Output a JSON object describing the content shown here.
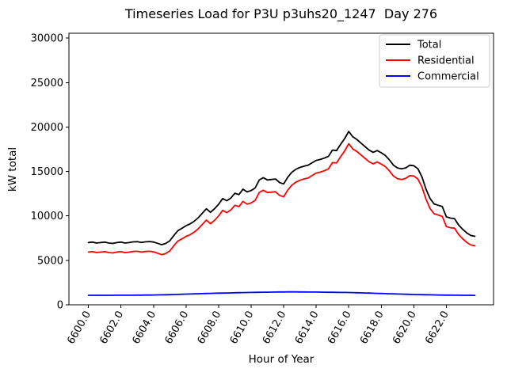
{
  "chart_data": {
    "type": "line",
    "title": "Timeseries Load for P3U p3uhs20_1247  Day 276",
    "xlabel": "Hour of Year",
    "ylabel": "kW total",
    "xlim": [
      6598.8,
      6624.9
    ],
    "ylim": [
      0,
      30550
    ],
    "xticks": [
      6600.0,
      6602.0,
      6604.0,
      6606.0,
      6608.0,
      6610.0,
      6612.0,
      6614.0,
      6616.0,
      6618.0,
      6620.0,
      6622.0
    ],
    "xtick_rotation_deg": 60,
    "yticks": [
      0,
      5000,
      10000,
      15000,
      20000,
      25000,
      30000
    ],
    "grid": false,
    "legend": {
      "position": "upper right",
      "entries": [
        "Total",
        "Residential",
        "Commercial"
      ]
    },
    "axis_color": "#000000",
    "legend_border_color": "#cccccc",
    "x": [
      6600.0,
      6600.25,
      6600.5,
      6600.75,
      6601.0,
      6601.25,
      6601.5,
      6601.75,
      6602.0,
      6602.25,
      6602.5,
      6602.75,
      6603.0,
      6603.25,
      6603.5,
      6603.75,
      6604.0,
      6604.25,
      6604.5,
      6604.75,
      6605.0,
      6605.25,
      6605.5,
      6605.75,
      6606.0,
      6606.25,
      6606.5,
      6606.75,
      6607.0,
      6607.25,
      6607.5,
      6607.75,
      6608.0,
      6608.25,
      6608.5,
      6608.75,
      6609.0,
      6609.25,
      6609.5,
      6609.75,
      6610.0,
      6610.25,
      6610.5,
      6610.75,
      6611.0,
      6611.25,
      6611.5,
      6611.75,
      6612.0,
      6612.25,
      6612.5,
      6612.75,
      6613.0,
      6613.25,
      6613.5,
      6613.75,
      6614.0,
      6614.25,
      6614.5,
      6614.75,
      6615.0,
      6615.25,
      6615.5,
      6615.75,
      6616.0,
      6616.25,
      6616.5,
      6616.75,
      6617.0,
      6617.25,
      6617.5,
      6617.75,
      6618.0,
      6618.25,
      6618.5,
      6618.75,
      6619.0,
      6619.25,
      6619.5,
      6619.75,
      6620.0,
      6620.25,
      6620.5,
      6620.75,
      6621.0,
      6621.25,
      6621.5,
      6621.75,
      6622.0,
      6622.25,
      6622.5,
      6622.75,
      6623.0,
      6623.25,
      6623.5,
      6623.75
    ],
    "series": [
      {
        "name": "Total",
        "color": "#000000",
        "values": [
          7000,
          7050,
          6950,
          7000,
          7050,
          6950,
          6900,
          7000,
          7050,
          6950,
          7000,
          7080,
          7100,
          7020,
          7080,
          7120,
          7060,
          6920,
          6760,
          6900,
          7200,
          7800,
          8350,
          8600,
          8900,
          9100,
          9400,
          9800,
          10300,
          10800,
          10400,
          10800,
          11300,
          11950,
          11700,
          12000,
          12550,
          12400,
          13000,
          12700,
          12850,
          13150,
          14050,
          14300,
          14050,
          14100,
          14150,
          13750,
          13600,
          14350,
          14900,
          15250,
          15450,
          15600,
          15700,
          15980,
          16250,
          16350,
          16500,
          16700,
          17400,
          17350,
          18050,
          18700,
          19500,
          18900,
          18600,
          18200,
          17800,
          17400,
          17150,
          17350,
          17100,
          16800,
          16300,
          15700,
          15400,
          15300,
          15400,
          15700,
          15650,
          15300,
          14400,
          13000,
          11950,
          11350,
          11200,
          11050,
          9900,
          9750,
          9700,
          9000,
          8500,
          8100,
          7800,
          7700
        ]
      },
      {
        "name": "Residential",
        "color": "#ff0000",
        "values": [
          5930,
          5980,
          5880,
          5930,
          5980,
          5880,
          5830,
          5930,
          5980,
          5870,
          5920,
          6000,
          6020,
          5930,
          5990,
          6020,
          5960,
          5810,
          5640,
          5770,
          6060,
          6650,
          7180,
          7420,
          7700,
          7890,
          8170,
          8560,
          9040,
          9530,
          9120,
          9500,
          9990,
          10630,
          10370,
          10660,
          11200,
          11040,
          11630,
          11320,
          11460,
          11750,
          12650,
          12890,
          12630,
          12670,
          12720,
          12310,
          12160,
          12900,
          13450,
          13800,
          14010,
          14160,
          14260,
          14550,
          14820,
          14930,
          15080,
          15290,
          16000,
          15950,
          16660,
          17310,
          18120,
          17530,
          17250,
          16860,
          16470,
          16090,
          15850,
          16070,
          15830,
          15550,
          15060,
          14480,
          14190,
          14100,
          14220,
          14530,
          14490,
          14150,
          13260,
          11870,
          10830,
          10240,
          10100,
          9950,
          8810,
          8670,
          8620,
          7930,
          7430,
          7030,
          6730,
          6640
        ]
      },
      {
        "name": "Commercial",
        "color": "#0000ff",
        "values": [
          1070,
          1070,
          1071,
          1071,
          1072,
          1073,
          1073,
          1074,
          1075,
          1077,
          1080,
          1082,
          1085,
          1089,
          1092,
          1096,
          1100,
          1110,
          1120,
          1130,
          1140,
          1155,
          1170,
          1185,
          1200,
          1215,
          1230,
          1245,
          1260,
          1273,
          1285,
          1298,
          1310,
          1320,
          1330,
          1340,
          1350,
          1360,
          1370,
          1380,
          1390,
          1398,
          1405,
          1413,
          1420,
          1426,
          1432,
          1439,
          1445,
          1448,
          1450,
          1448,
          1445,
          1441,
          1437,
          1434,
          1430,
          1424,
          1418,
          1411,
          1405,
          1399,
          1393,
          1386,
          1380,
          1368,
          1355,
          1343,
          1330,
          1315,
          1300,
          1285,
          1270,
          1255,
          1240,
          1225,
          1210,
          1198,
          1185,
          1173,
          1160,
          1150,
          1140,
          1130,
          1120,
          1113,
          1105,
          1098,
          1090,
          1085,
          1080,
          1075,
          1070,
          1068,
          1066,
          1062
        ]
      }
    ]
  }
}
